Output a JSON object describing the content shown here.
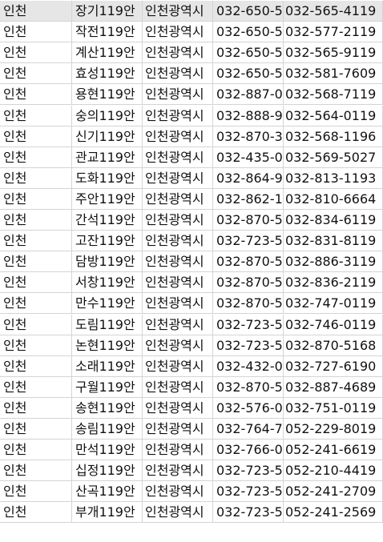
{
  "rows": [
    [
      "인천",
      "장기119안",
      "인천광역시",
      "032-650-5",
      "032-565-4119"
    ],
    [
      "인천",
      "작전119안",
      "인천광역시",
      "032-650-5",
      "032-577-2119"
    ],
    [
      "인천",
      "계산119안",
      "인천광역시",
      "032-650-5",
      "032-565-9119"
    ],
    [
      "인천",
      "효성119안",
      "인천광역시",
      "032-650-5",
      "032-581-7609"
    ],
    [
      "인천",
      "용현119안",
      "인천광역시",
      "032-887-0",
      "032-568-7119"
    ],
    [
      "인천",
      "숭의119안",
      "인천광역시",
      "032-888-9",
      "032-564-0119"
    ],
    [
      "인천",
      "신기119안",
      "인천광역시",
      "032-870-3",
      "032-568-1196"
    ],
    [
      "인천",
      "관교119안",
      "인천광역시",
      "032-435-0",
      "032-569-5027"
    ],
    [
      "인천",
      "도화119안",
      "인천광역시",
      "032-864-9",
      "032-813-1193"
    ],
    [
      "인천",
      "주안119안",
      "인천광역시",
      "032-862-1",
      "032-810-6664"
    ],
    [
      "인천",
      "간석119안",
      "인천광역시",
      "032-870-5",
      "032-834-6119"
    ],
    [
      "인천",
      "고잔119안",
      "인천광역시",
      "032-723-5",
      "032-831-8119"
    ],
    [
      "인천",
      "담방119안",
      "인천광역시",
      "032-870-5",
      "032-886-3119"
    ],
    [
      "인천",
      "서창119안",
      "인천광역시",
      "032-870-5",
      "032-836-2119"
    ],
    [
      "인천",
      "만수119안",
      "인천광역시",
      "032-870-5",
      "032-747-0119"
    ],
    [
      "인천",
      "도림119안",
      "인천광역시",
      "032-723-5",
      "032-746-0119"
    ],
    [
      "인천",
      "논현119안",
      "인천광역시",
      "032-723-5",
      "032-870-5168"
    ],
    [
      "인천",
      "소래119안",
      "인천광역시",
      "032-432-0",
      "032-727-6190"
    ],
    [
      "인천",
      "구월119안",
      "인천광역시",
      "032-870-5",
      "032-887-4689"
    ],
    [
      "인천",
      "송현119안",
      "인천광역시",
      "032-576-0",
      "032-751-0119"
    ],
    [
      "인천",
      "송림119안",
      "인천광역시",
      "032-764-7",
      "052-229-8019"
    ],
    [
      "인천",
      "만석119안",
      "인천광역시",
      "032-766-0",
      "052-241-6619"
    ],
    [
      "인천",
      "십정119안",
      "인천광역시",
      "032-723-5",
      "052-210-4419"
    ],
    [
      "인천",
      "산곡119안",
      "인천광역시",
      "032-723-5",
      "052-241-2709"
    ],
    [
      "인천",
      "부개119안",
      "인천광역시",
      "032-723-5",
      "052-241-2569"
    ]
  ]
}
